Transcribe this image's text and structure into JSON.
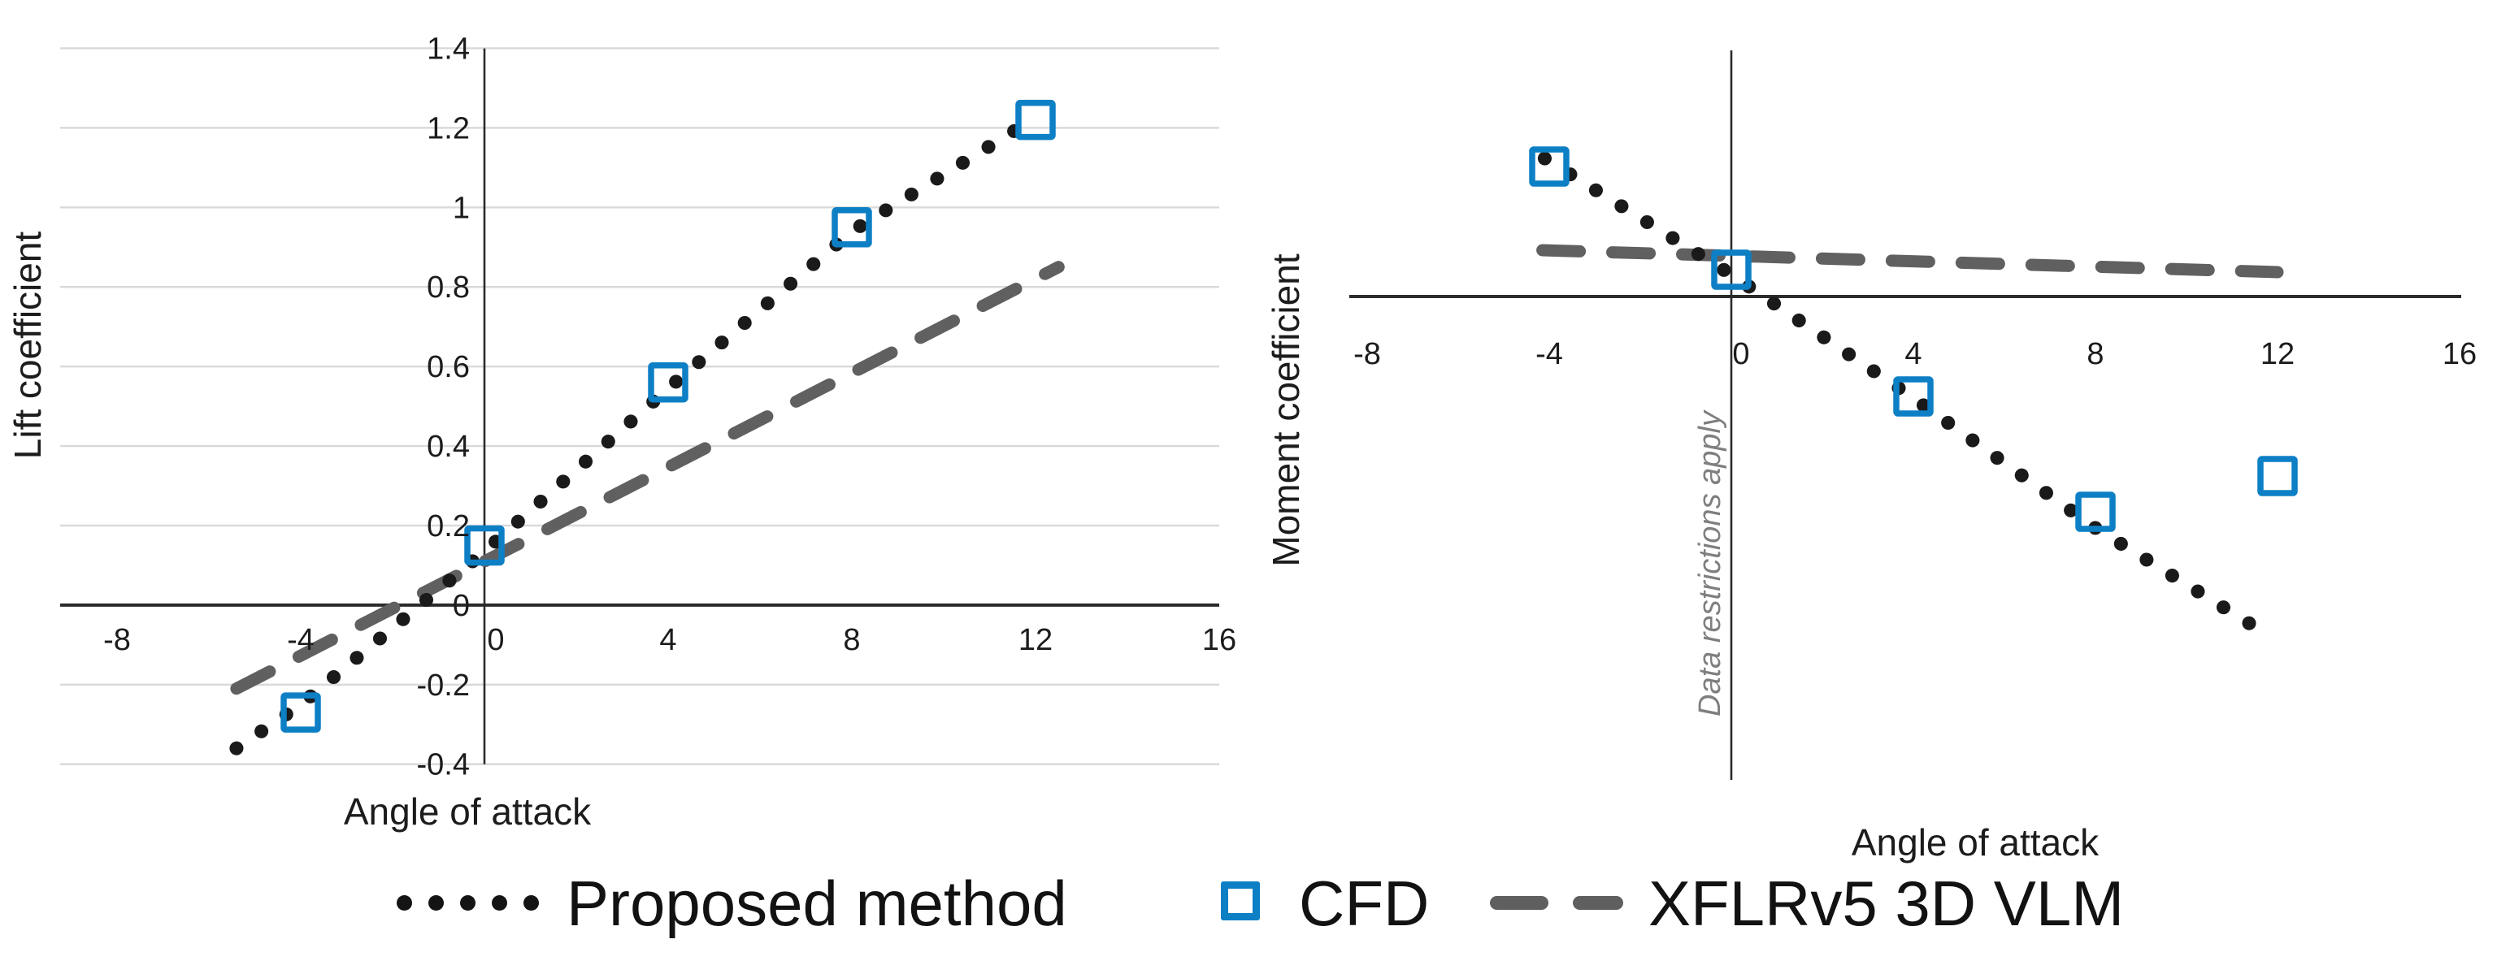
{
  "figure": {
    "background": "#ffffff",
    "description": "Two scatter/line charts comparing aerodynamic coefficients vs angle of attack"
  },
  "colors": {
    "proposed": "#1a1a1a",
    "cfd_blue": "#0d7fc5",
    "xflr_gray": "#606060",
    "gridline": "#d9d9d9",
    "axis": "#2b2b2b",
    "text": "#1c1c1c",
    "annotation_gray": "#7f7f7f"
  },
  "legend": {
    "position": "bottom-center",
    "items": [
      {
        "label": "Proposed method",
        "swatch": "dotted-line-sample"
      },
      {
        "label": "CFD",
        "swatch": "open-square-sample"
      },
      {
        "label": "XFLRv5 3D VLM",
        "swatch": "dashed-line-sample"
      }
    ]
  },
  "chart_data": [
    {
      "type": "scatter",
      "title": "",
      "xlabel": "Angle of attack",
      "ylabel": "Lift coefficient",
      "xlim": [
        -8,
        16
      ],
      "ylim": [
        -0.4,
        1.4
      ],
      "xticks": [
        -8,
        -4,
        0,
        4,
        8,
        12,
        16
      ],
      "yticks": [
        "1.4",
        "1.2",
        "1",
        "0.8",
        "0.6",
        "0.4",
        "0.2",
        "0",
        "-0.2",
        "-0.4"
      ],
      "grid": "horizontal",
      "legend_position": "shared-bottom",
      "series": [
        {
          "name": "Proposed method",
          "style": "dotted",
          "color_key": "proposed",
          "points": [
            [
              -5.4,
              -0.36
            ],
            [
              -4,
              -0.25
            ],
            [
              0,
              0.135
            ],
            [
              4,
              0.545
            ],
            [
              8,
              0.94
            ],
            [
              12,
              1.225
            ]
          ]
        },
        {
          "name": "CFD",
          "style": "open-squares",
          "color_key": "cfd_blue",
          "points": [
            [
              -4,
              -0.27
            ],
            [
              0,
              0.15
            ],
            [
              4,
              0.56
            ],
            [
              8,
              0.95
            ],
            [
              12,
              1.22
            ]
          ]
        },
        {
          "name": "XFLRv5 3D VLM",
          "style": "dashed",
          "color_key": "xflr_gray",
          "points": [
            [
              -5.4,
              -0.21
            ],
            [
              12.5,
              0.85
            ]
          ]
        }
      ]
    },
    {
      "type": "scatter",
      "title": "",
      "xlabel": "Angle of attack",
      "ylabel": "Moment coefficient",
      "annotation": "Data restrictions apply",
      "xlim": [
        -8,
        16
      ],
      "xticks": [
        -8,
        -4,
        0,
        4,
        8,
        12,
        16
      ],
      "yticks": [],
      "y_units": "arbitrary (y-axis values hidden, data restrictions apply)",
      "grid": "none",
      "legend_position": "shared-bottom",
      "series": [
        {
          "name": "Proposed method",
          "style": "dotted",
          "color_key": "proposed",
          "points": [
            [
              -4.1,
              0.17
            ],
            [
              0,
              0.027
            ],
            [
              4,
              -0.125
            ],
            [
              8,
              -0.285
            ],
            [
              11.6,
              -0.41
            ]
          ]
        },
        {
          "name": "CFD",
          "style": "open-squares",
          "color_key": "cfd_blue",
          "points": [
            [
              -4,
              0.16
            ],
            [
              0,
              0.033
            ],
            [
              4,
              -0.123
            ],
            [
              8,
              -0.265
            ],
            [
              12,
              -0.221
            ]
          ]
        },
        {
          "name": "XFLRv5 3D VLM",
          "style": "dashed",
          "color_key": "xflr_gray",
          "points": [
            [
              -4.15,
              0.057
            ],
            [
              12,
              0.03
            ]
          ]
        }
      ]
    }
  ]
}
